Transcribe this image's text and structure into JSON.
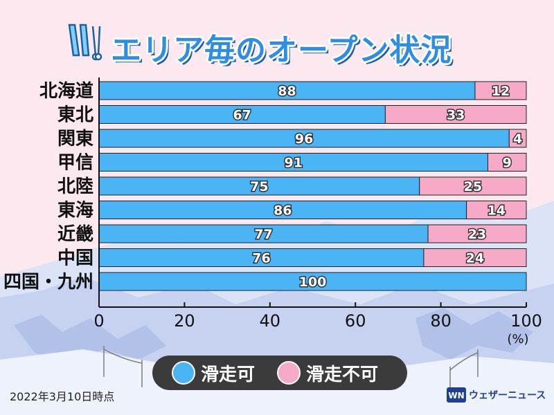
{
  "header": {
    "title": "エリア毎のオープン状況"
  },
  "chart_data": {
    "type": "bar",
    "orientation": "horizontal",
    "stacked": true,
    "categories": [
      "北海道",
      "東北",
      "関東",
      "甲信",
      "北陸",
      "東海",
      "近畿",
      "中国",
      "四国・九州"
    ],
    "series": [
      {
        "name": "滑走可",
        "color": "#4ab4f5",
        "values": [
          88,
          67,
          96,
          91,
          75,
          86,
          77,
          76,
          100
        ]
      },
      {
        "name": "滑走不可",
        "color": "#f7a9c8",
        "values": [
          12,
          33,
          4,
          9,
          25,
          14,
          23,
          24,
          0
        ]
      }
    ],
    "xlim": [
      0,
      100
    ],
    "xticks": [
      0,
      20,
      40,
      60,
      80,
      100
    ],
    "xunit": "(%)"
  },
  "legend": [
    {
      "label": "滑走可",
      "color": "#4ab4f5"
    },
    {
      "label": "滑走不可",
      "color": "#f7a9c8"
    }
  ],
  "footer": {
    "date": "2022年3月10日時点",
    "brand": "ウェザーニュース",
    "logo_text": "WN"
  }
}
